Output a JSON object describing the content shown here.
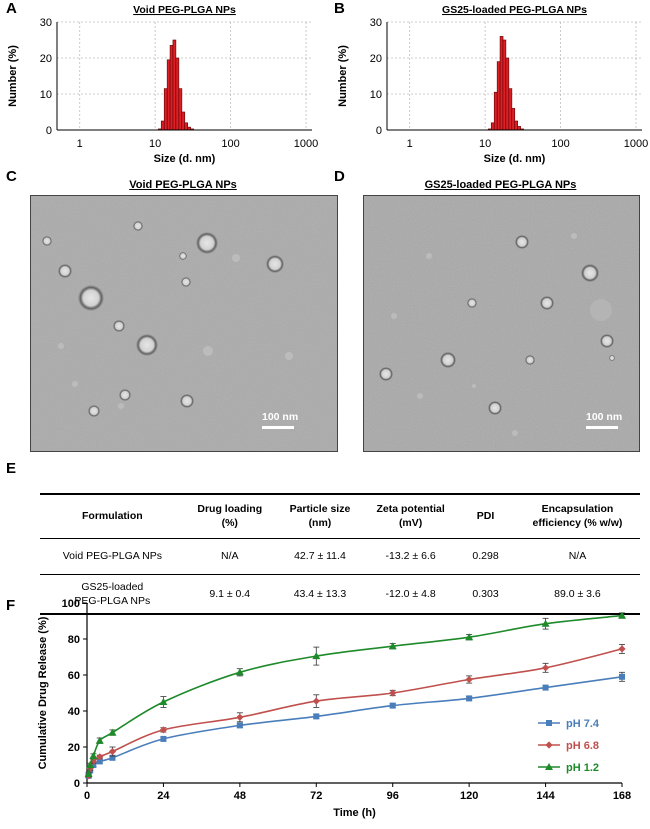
{
  "panels": {
    "A": {
      "letter": "A",
      "title": "Void PEG-PLGA NPs"
    },
    "B": {
      "letter": "B",
      "title": "GS25-loaded PEG-PLGA NPs"
    },
    "C": {
      "letter": "C",
      "title": "Void PEG-PLGA NPs",
      "scale_label": "100 nm"
    },
    "D": {
      "letter": "D",
      "title": "GS25-loaded PEG-PLGA NPs",
      "scale_label": "100 nm"
    },
    "E": {
      "letter": "E"
    },
    "F": {
      "letter": "F"
    }
  },
  "table": {
    "headers": [
      "Formulation",
      "Drug loading\n(%)",
      "Particle size\n(nm)",
      "Zeta potential\n(mV)",
      "PDI",
      "Encapsulation\nefficiency (% w/w)"
    ],
    "rows": [
      [
        "Void PEG-PLGA NPs",
        "N/A",
        "42.7 ± 11.4",
        "-13.2 ± 6.6",
        "0.298",
        "N/A"
      ],
      [
        "GS25-loaded\nPEG-PLGA NPs",
        "9.1 ± 0.4",
        "43.4 ± 13.3",
        "-12.0 ± 4.8",
        "0.303",
        "89.0 ± 3.6"
      ]
    ]
  },
  "chart_data": [
    {
      "type": "bar",
      "panel": "A",
      "title": "Void PEG-PLGA NPs",
      "xlabel": "Size (d. nm)",
      "ylabel": "Number (%)",
      "xscale": "log",
      "xlim": [
        0.5,
        1200
      ],
      "ylim": [
        0,
        30
      ],
      "xticks": [
        "1",
        "10",
        "100",
        "1000"
      ],
      "yticks": [
        "0",
        "10",
        "20",
        "30"
      ],
      "grid": true,
      "color": "#dd1f26",
      "bins": [
        {
          "x": 11.5,
          "value": 0.3
        },
        {
          "x": 12.6,
          "value": 2.5
        },
        {
          "x": 13.8,
          "value": 11.5
        },
        {
          "x": 15.1,
          "value": 19.5
        },
        {
          "x": 16.5,
          "value": 23.5
        },
        {
          "x": 18.0,
          "value": 25.0
        },
        {
          "x": 19.7,
          "value": 20.0
        },
        {
          "x": 21.6,
          "value": 11.5
        },
        {
          "x": 23.6,
          "value": 5.0
        },
        {
          "x": 25.8,
          "value": 2.0
        },
        {
          "x": 28.2,
          "value": 0.8
        },
        {
          "x": 30.9,
          "value": 0.3
        }
      ]
    },
    {
      "type": "bar",
      "panel": "B",
      "title": "GS25-loaded PEG-PLGA NPs",
      "xlabel": "Size (d. nm)",
      "ylabel": "Number (%)",
      "xscale": "log",
      "xlim": [
        0.5,
        1200
      ],
      "ylim": [
        0,
        30
      ],
      "xticks": [
        "1",
        "10",
        "100",
        "1000"
      ],
      "yticks": [
        "0",
        "10",
        "20",
        "30"
      ],
      "grid": true,
      "color": "#dd1f26",
      "bins": [
        {
          "x": 11.5,
          "value": 0.3
        },
        {
          "x": 12.6,
          "value": 2.0
        },
        {
          "x": 13.8,
          "value": 10.5
        },
        {
          "x": 15.1,
          "value": 19.0
        },
        {
          "x": 16.5,
          "value": 26.0
        },
        {
          "x": 18.0,
          "value": 25.0
        },
        {
          "x": 19.7,
          "value": 20.0
        },
        {
          "x": 21.6,
          "value": 11.5
        },
        {
          "x": 23.6,
          "value": 6.0
        },
        {
          "x": 25.8,
          "value": 2.5
        },
        {
          "x": 28.2,
          "value": 1.0
        },
        {
          "x": 30.9,
          "value": 0.3
        }
      ]
    },
    {
      "type": "line",
      "panel": "F",
      "title": "",
      "xlabel": "Time (h)",
      "ylabel": "Cumulative Drug Release (%)",
      "xlim": [
        0,
        168
      ],
      "ylim": [
        0,
        100
      ],
      "xticks": [
        0,
        24,
        48,
        72,
        96,
        120,
        144,
        168
      ],
      "yticks": [
        0,
        20,
        40,
        60,
        80,
        100
      ],
      "legend_position": "lower-right",
      "x": [
        0.5,
        1,
        2,
        4,
        8,
        24,
        48,
        72,
        96,
        120,
        144,
        168
      ],
      "series": [
        {
          "name": "pH 7.4",
          "color": "#4a7ebb",
          "marker": "square",
          "values": [
            4,
            7,
            10,
            12,
            14,
            24.5,
            32,
            37,
            43,
            47,
            53,
            59
          ],
          "errors": [
            1,
            1,
            1,
            1,
            1.2,
            1.2,
            1.2,
            1.2,
            1,
            1,
            1.2,
            2.5
          ]
        },
        {
          "name": "pH 6.8",
          "color": "#c0504d",
          "marker": "diamond",
          "values": [
            4,
            8,
            12,
            14.5,
            17.5,
            29.5,
            36.5,
            45.5,
            50,
            57.5,
            64,
            74.5
          ],
          "errors": [
            1,
            1,
            1,
            1,
            2.5,
            1.2,
            2.5,
            3.5,
            1.5,
            2,
            2.5,
            2.5
          ]
        },
        {
          "name": "pH 1.2",
          "color": "#1e8a2a",
          "marker": "triangle",
          "values": [
            5,
            10,
            15,
            23.5,
            28,
            45,
            61.5,
            70.5,
            76,
            81,
            88.5,
            93
          ],
          "errors": [
            1,
            1,
            1.2,
            1.5,
            1.5,
            3,
            2,
            5,
            1.5,
            1.5,
            3,
            1.5
          ]
        }
      ]
    }
  ]
}
